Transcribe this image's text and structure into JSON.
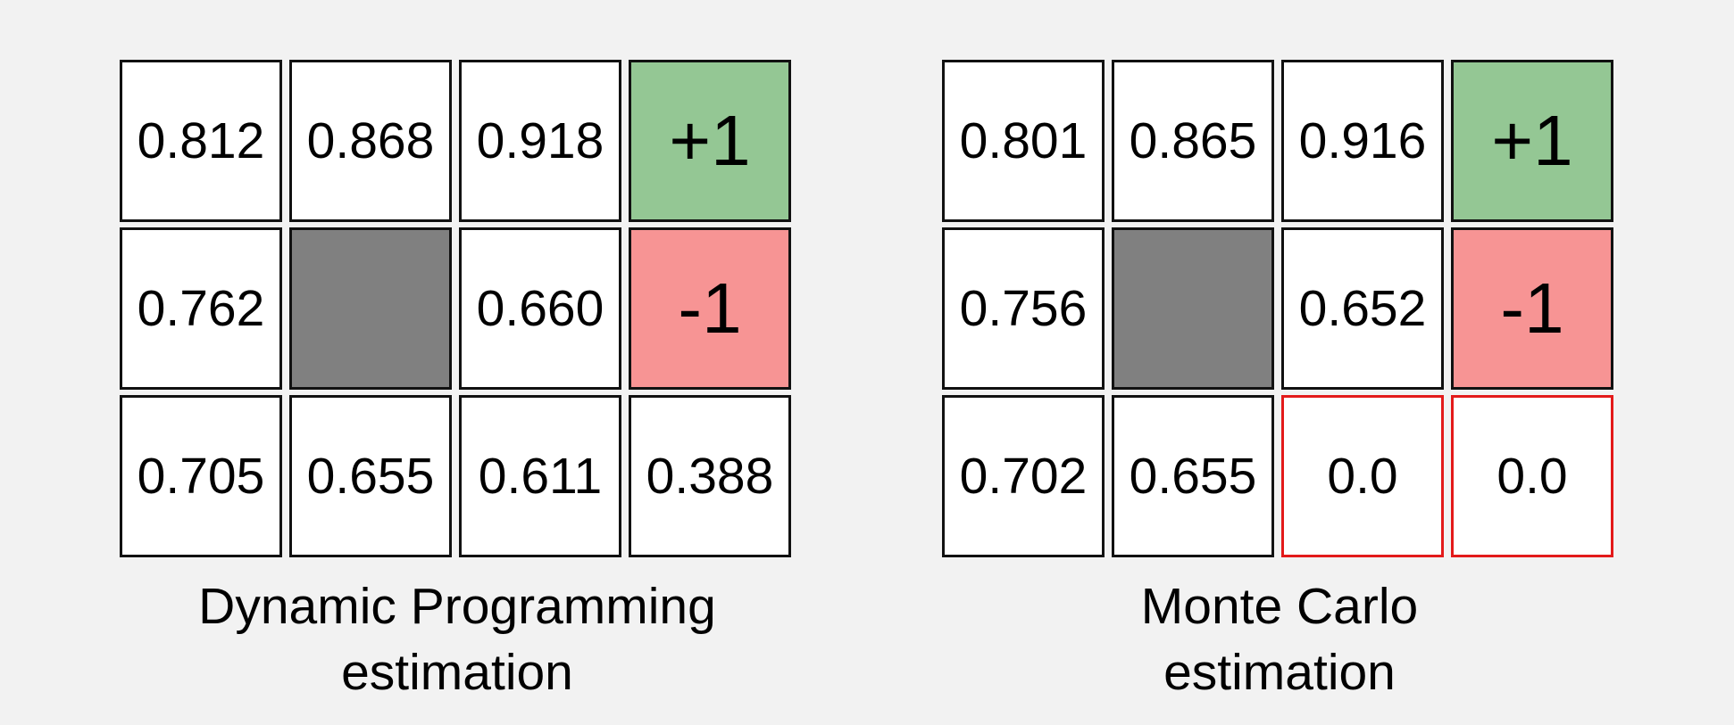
{
  "colors": {
    "background": "#f2f2f2",
    "cell": "#ffffff",
    "border": "#111111",
    "goal": "#94c794",
    "pit": "#f79494",
    "wall": "#808080",
    "highlight_border": "#e31a1a"
  },
  "panels": [
    {
      "caption_lines": [
        "Dynamic Programming",
        "estimation"
      ],
      "cells": [
        {
          "text": "0.812",
          "kind": "value"
        },
        {
          "text": "0.868",
          "kind": "value"
        },
        {
          "text": "0.918",
          "kind": "value"
        },
        {
          "text": "+1",
          "kind": "goal"
        },
        {
          "text": "0.762",
          "kind": "value"
        },
        {
          "text": "",
          "kind": "wall"
        },
        {
          "text": "0.660",
          "kind": "value"
        },
        {
          "text": "-1",
          "kind": "pit"
        },
        {
          "text": "0.705",
          "kind": "value"
        },
        {
          "text": "0.655",
          "kind": "value"
        },
        {
          "text": "0.611",
          "kind": "value"
        },
        {
          "text": "0.388",
          "kind": "value"
        }
      ]
    },
    {
      "caption_lines": [
        "Monte Carlo",
        "estimation"
      ],
      "cells": [
        {
          "text": "0.801",
          "kind": "value"
        },
        {
          "text": "0.865",
          "kind": "value"
        },
        {
          "text": "0.916",
          "kind": "value"
        },
        {
          "text": "+1",
          "kind": "goal"
        },
        {
          "text": "0.756",
          "kind": "value"
        },
        {
          "text": "",
          "kind": "wall"
        },
        {
          "text": "0.652",
          "kind": "value"
        },
        {
          "text": "-1",
          "kind": "pit"
        },
        {
          "text": "0.702",
          "kind": "value"
        },
        {
          "text": "0.655",
          "kind": "value"
        },
        {
          "text": "0.0",
          "kind": "value-highlight"
        },
        {
          "text": "0.0",
          "kind": "value-highlight"
        }
      ]
    }
  ]
}
